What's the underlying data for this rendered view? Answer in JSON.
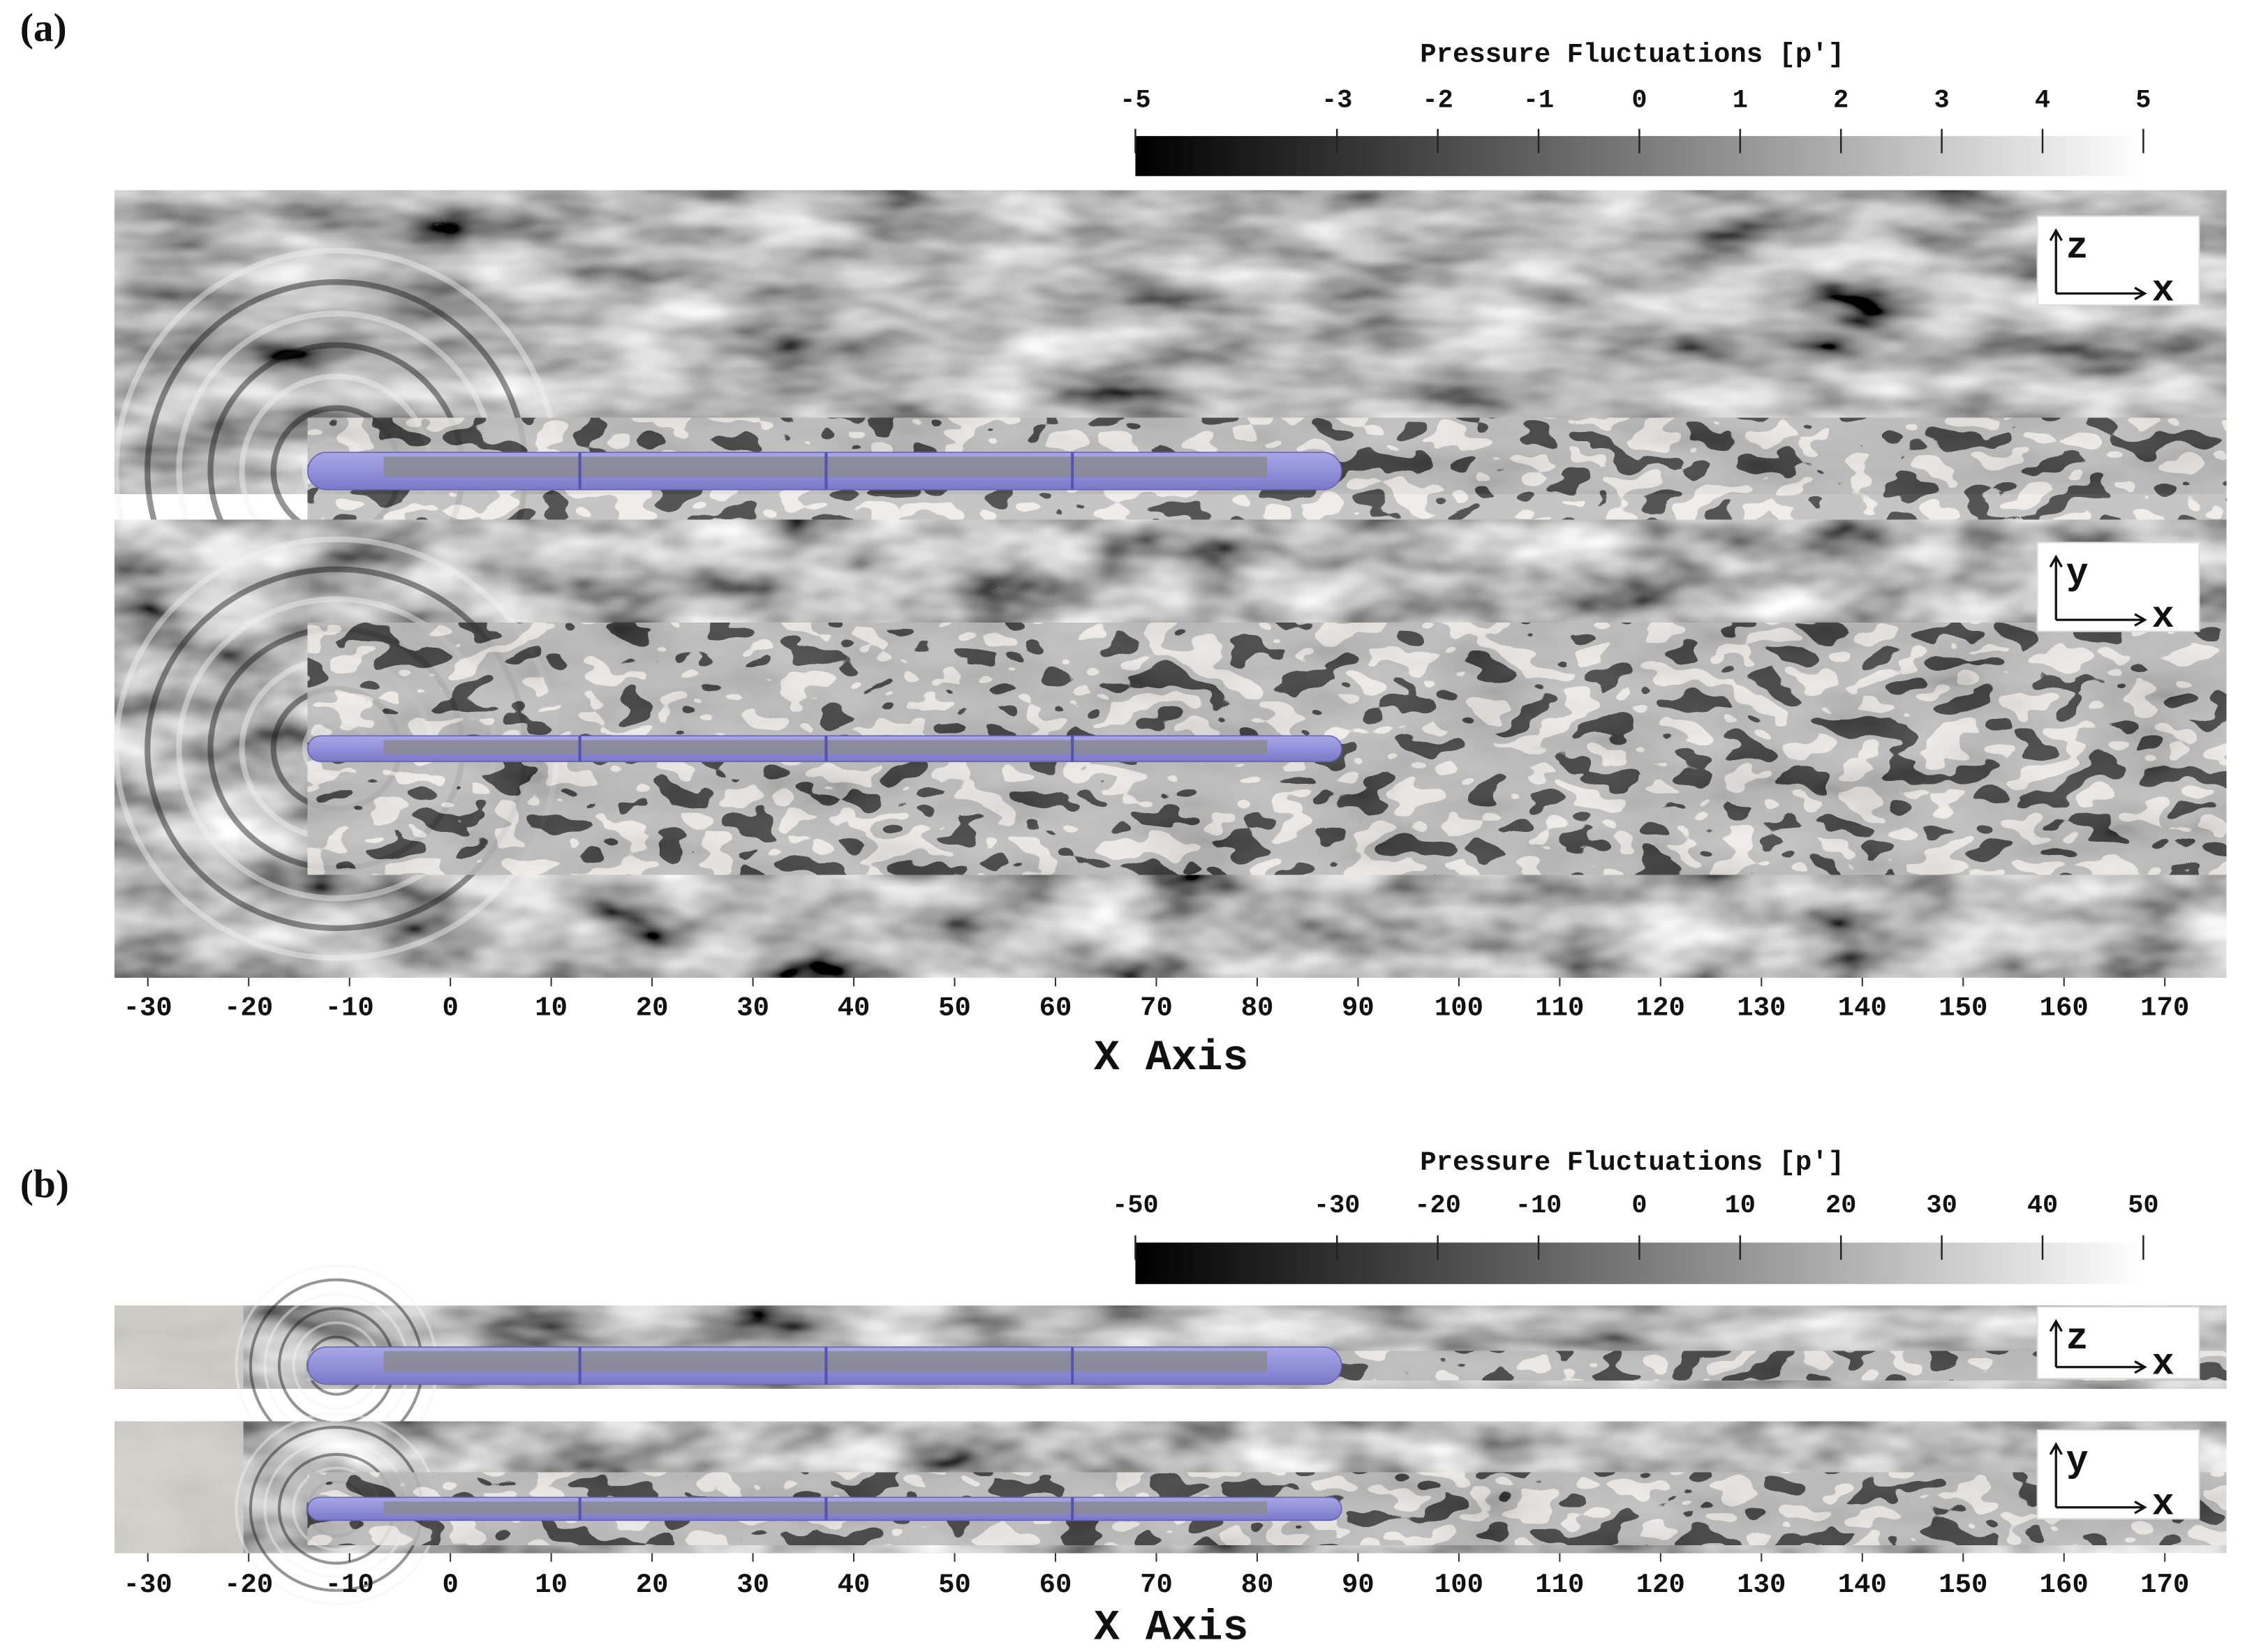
{
  "panels": [
    {
      "label": "(a)",
      "colorbar": {
        "title": "Pressure Fluctuations [p']",
        "lim": [
          -5,
          5
        ],
        "ticks": [
          -5,
          -3,
          -2,
          -1,
          0,
          1,
          2,
          3,
          4,
          5
        ]
      },
      "views": [
        {
          "axes": [
            "z",
            "x"
          ]
        },
        {
          "axes": [
            "y",
            "x"
          ]
        }
      ],
      "x_axis": {
        "label": "X Axis",
        "lim": [
          -33.3,
          176.1
        ],
        "ticks": [
          -30,
          -20,
          -10,
          0,
          10,
          20,
          30,
          40,
          50,
          60,
          70,
          80,
          90,
          100,
          110,
          120,
          130,
          140,
          150,
          160,
          170
        ]
      }
    },
    {
      "label": "(b)",
      "colorbar": {
        "title": "Pressure Fluctuations [p']",
        "lim": [
          -50,
          50
        ],
        "ticks": [
          -50,
          -30,
          -20,
          -10,
          0,
          10,
          20,
          30,
          40,
          50
        ]
      },
      "views": [
        {
          "axes": [
            "z",
            "x"
          ]
        },
        {
          "axes": [
            "y",
            "x"
          ]
        }
      ],
      "x_axis": {
        "label": "X Axis",
        "lim": [
          -33.3,
          176.1
        ],
        "ticks": [
          -30,
          -20,
          -10,
          0,
          10,
          20,
          30,
          40,
          50,
          60,
          70,
          80,
          90,
          100,
          110,
          120,
          130,
          140,
          150,
          160,
          170
        ]
      }
    }
  ]
}
